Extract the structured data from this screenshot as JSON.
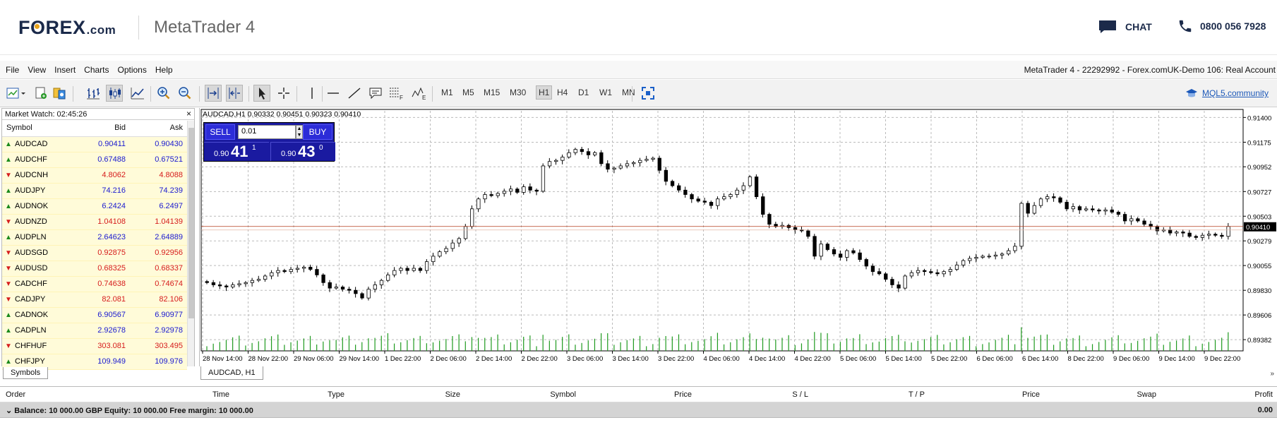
{
  "header": {
    "brand_pre": "F",
    "brand_o": "O",
    "brand_post": "REX",
    "brand_suffix": ".com",
    "product": "MetaTrader 4",
    "chat_label": "CHAT",
    "phone_number": "0800 056 7928"
  },
  "menu": {
    "items": [
      "File",
      "View",
      "Insert",
      "Charts",
      "Options",
      "Help"
    ],
    "account": "MetaTrader 4 - 22292992 - Forex.comUK-Demo 106: Real Account"
  },
  "toolbar": {
    "timeframes": [
      "M1",
      "M5",
      "M15",
      "M30",
      "H1",
      "H4",
      "D1",
      "W1",
      "MN"
    ],
    "active_timeframe": "H1",
    "mql_link": "MQL5.community"
  },
  "market_watch": {
    "title": "Market Watch: 02:45:26",
    "columns": [
      "Symbol",
      "Bid",
      "Ask"
    ],
    "tab": "Symbols",
    "rows": [
      {
        "symbol": "AUDCAD",
        "bid": "0.90411",
        "ask": "0.90430",
        "dir": "up"
      },
      {
        "symbol": "AUDCHF",
        "bid": "0.67488",
        "ask": "0.67521",
        "dir": "up"
      },
      {
        "symbol": "AUDCNH",
        "bid": "4.8062",
        "ask": "4.8088",
        "dir": "down"
      },
      {
        "symbol": "AUDJPY",
        "bid": "74.216",
        "ask": "74.239",
        "dir": "up"
      },
      {
        "symbol": "AUDNOK",
        "bid": "6.2424",
        "ask": "6.2497",
        "dir": "up"
      },
      {
        "symbol": "AUDNZD",
        "bid": "1.04108",
        "ask": "1.04139",
        "dir": "down"
      },
      {
        "symbol": "AUDPLN",
        "bid": "2.64623",
        "ask": "2.64889",
        "dir": "up"
      },
      {
        "symbol": "AUDSGD",
        "bid": "0.92875",
        "ask": "0.92956",
        "dir": "down"
      },
      {
        "symbol": "AUDUSD",
        "bid": "0.68325",
        "ask": "0.68337",
        "dir": "down"
      },
      {
        "symbol": "CADCHF",
        "bid": "0.74638",
        "ask": "0.74674",
        "dir": "down"
      },
      {
        "symbol": "CADJPY",
        "bid": "82.081",
        "ask": "82.106",
        "dir": "down"
      },
      {
        "symbol": "CADNOK",
        "bid": "6.90567",
        "ask": "6.90977",
        "dir": "up"
      },
      {
        "symbol": "CADPLN",
        "bid": "2.92678",
        "ask": "2.92978",
        "dir": "up"
      },
      {
        "symbol": "CHFHUF",
        "bid": "303.081",
        "ask": "303.495",
        "dir": "down"
      },
      {
        "symbol": "CHFJPY",
        "bid": "109.949",
        "ask": "109.976",
        "dir": "up"
      }
    ]
  },
  "chart": {
    "title": "AUDCAD,H1  0.90332 0.90451 0.90323 0.90410",
    "tab": "AUDCAD, H1",
    "sell_label": "SELL",
    "buy_label": "BUY",
    "lot": "0.01",
    "sell_small": "0.90",
    "sell_big": "41",
    "sell_sup": "1",
    "buy_small": "0.90",
    "buy_big": "43",
    "buy_sup": "0",
    "current_price": "0.90410",
    "price_labels": [
      "0.91400",
      "0.91175",
      "0.90952",
      "0.90727",
      "0.90503",
      "0.90279",
      "0.90055",
      "0.89830",
      "0.89606",
      "0.89382"
    ],
    "time_labels": [
      "28 Nov 14:00",
      "28 Nov 22:00",
      "29 Nov 06:00",
      "29 Nov 14:00",
      "1 Dec 22:00",
      "2 Dec 06:00",
      "2 Dec 14:00",
      "2 Dec 22:00",
      "3 Dec 06:00",
      "3 Dec 14:00",
      "3 Dec 22:00",
      "4 Dec 06:00",
      "4 Dec 14:00",
      "4 Dec 22:00",
      "5 Dec 06:00",
      "5 Dec 14:00",
      "5 Dec 22:00",
      "6 Dec 06:00",
      "6 Dec 14:00",
      "8 Dec 22:00",
      "9 Dec 06:00",
      "9 Dec 14:00",
      "9 Dec 22:00"
    ]
  },
  "chart_data": {
    "type": "candlestick",
    "series_close": [
      0.899,
      0.8988,
      0.8987,
      0.8986,
      0.8988,
      0.8989,
      0.899,
      0.8992,
      0.8993,
      0.8996,
      0.8999,
      0.9001,
      0.9,
      0.9002,
      0.9003,
      0.9004,
      0.9002,
      0.8997,
      0.899,
      0.8985,
      0.8986,
      0.8984,
      0.8983,
      0.898,
      0.8976,
      0.8984,
      0.8988,
      0.8992,
      0.8997,
      0.9001,
      0.9003,
      0.9001,
      0.9003,
      0.9001,
      0.9009,
      0.9014,
      0.9018,
      0.9021,
      0.9026,
      0.903,
      0.9041,
      0.9057,
      0.9066,
      0.907,
      0.9069,
      0.9071,
      0.9073,
      0.9075,
      0.9072,
      0.9077,
      0.9074,
      0.9073,
      0.9096,
      0.91,
      0.9101,
      0.9104,
      0.9108,
      0.9111,
      0.9109,
      0.9106,
      0.9108,
      0.9098,
      0.9093,
      0.9094,
      0.9096,
      0.9098,
      0.9099,
      0.9101,
      0.9102,
      0.9103,
      0.9092,
      0.9082,
      0.9078,
      0.9074,
      0.907,
      0.9066,
      0.9064,
      0.9063,
      0.906,
      0.9066,
      0.9068,
      0.907,
      0.9074,
      0.9078,
      0.9086,
      0.9068,
      0.9052,
      0.9043,
      0.9041,
      0.9042,
      0.904,
      0.9038,
      0.9037,
      0.9032,
      0.9014,
      0.9025,
      0.902,
      0.9016,
      0.9013,
      0.9019,
      0.9017,
      0.9011,
      0.9005,
      0.9,
      0.8998,
      0.8993,
      0.8988,
      0.8985,
      0.8996,
      0.8999,
      0.9001,
      0.9,
      0.8999,
      0.8998,
      0.9,
      0.9002,
      0.9006,
      0.901,
      0.9012,
      0.9013,
      0.9014,
      0.9014,
      0.9015,
      0.9016,
      0.9019,
      0.9023,
      0.9062,
      0.9053,
      0.906,
      0.9066,
      0.9068,
      0.9067,
      0.9063,
      0.9057,
      0.9059,
      0.9056,
      0.9057,
      0.9056,
      0.9055,
      0.9056,
      0.9054,
      0.9052,
      0.9046,
      0.9048,
      0.9046,
      0.9043,
      0.9041,
      0.9037,
      0.9038,
      0.9035,
      0.9036,
      0.9035,
      0.9032,
      0.9031,
      0.9033,
      0.9034,
      0.9033,
      0.9032,
      0.9041
    ]
  },
  "terminal": {
    "columns": [
      {
        "label": "Order",
        "align": "left"
      },
      {
        "label": "Time",
        "align": "right"
      },
      {
        "label": "Type",
        "align": "right"
      },
      {
        "label": "Size",
        "align": "right"
      },
      {
        "label": "Symbol",
        "align": "right"
      },
      {
        "label": "Price",
        "align": "right"
      },
      {
        "label": "S / L",
        "align": "right"
      },
      {
        "label": "T / P",
        "align": "right"
      },
      {
        "label": "Price",
        "align": "right"
      },
      {
        "label": "Swap",
        "align": "right"
      },
      {
        "label": "Profit",
        "align": "right"
      }
    ],
    "balance_text": "Balance: 10 000.00 GBP  Equity: 10 000.00  Free margin: 10 000.00",
    "profit": "0.00"
  },
  "colors": {
    "up": "#1a8a1a",
    "down": "#d61c1c",
    "bid_blue": "#1a1ad0",
    "panel_blue": "#1a1aa0",
    "volume_green": "#1f9a1f"
  }
}
